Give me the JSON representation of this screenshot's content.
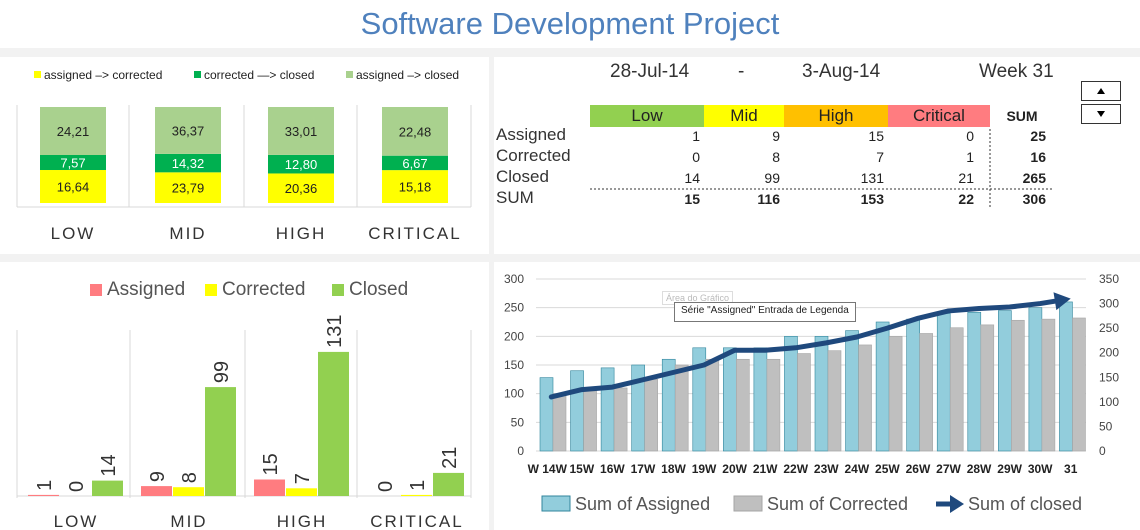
{
  "title": "Software Development Project",
  "period": {
    "start": "28-Jul-14",
    "sep": "-",
    "end": "3-Aug-14",
    "week": "Week 31"
  },
  "table": {
    "headers": [
      "Low",
      "Mid",
      "High",
      "Critical",
      "SUM"
    ],
    "header_colors": [
      "#92d050",
      "#ffff00",
      "#ffc000",
      "#ff7c80"
    ],
    "rows": [
      {
        "label": "Assigned",
        "values": [
          "1",
          "9",
          "15",
          "0",
          "25"
        ]
      },
      {
        "label": "Corrected",
        "values": [
          "0",
          "8",
          "7",
          "1",
          "16"
        ]
      },
      {
        "label": "Closed",
        "values": [
          "14",
          "99",
          "131",
          "21",
          "265"
        ]
      },
      {
        "label": "SUM",
        "values": [
          "15",
          "116",
          "153",
          "22",
          "306"
        ]
      }
    ]
  },
  "tooltip": "Série \"Assigned\" Entrada de Legenda",
  "ghost_label": "Área do Gráfico",
  "spinner": {
    "up": "▲",
    "down": "▼"
  },
  "chart_data": [
    {
      "type": "bar",
      "stacked": true,
      "categories": [
        "LOW",
        "MID",
        "HIGH",
        "CRITICAL"
      ],
      "series": [
        {
          "name": "assigned –> corrected",
          "color": "#ffff00",
          "values": [
            16.64,
            23.79,
            20.36,
            15.18
          ],
          "labels": [
            "16,64",
            "23,79",
            "20,36",
            "15,18"
          ]
        },
        {
          "name": "corrected —> closed",
          "color": "#00b050",
          "values": [
            7.57,
            14.32,
            12.8,
            6.67
          ],
          "labels": [
            "7,57",
            "14,32",
            "12,80",
            "6,67"
          ]
        },
        {
          "name": "assigned –> closed",
          "color": "#a9d18e",
          "values": [
            24.21,
            36.37,
            33.01,
            22.48
          ],
          "labels": [
            "24,21",
            "36,37",
            "33,01",
            "22,48"
          ]
        }
      ],
      "legend": "top"
    },
    {
      "type": "bar",
      "categories": [
        "LOW",
        "MID",
        "HIGH",
        "CRITICAL"
      ],
      "series": [
        {
          "name": "Assigned",
          "color": "#ff7c80",
          "values": [
            1,
            9,
            15,
            0
          ]
        },
        {
          "name": "Corrected",
          "color": "#ffff00",
          "values": [
            0,
            8,
            7,
            1
          ]
        },
        {
          "name": "Closed",
          "color": "#92d050",
          "values": [
            14,
            99,
            131,
            21
          ]
        }
      ],
      "ylim": [
        0,
        140
      ],
      "legend": "top"
    },
    {
      "type": "bar",
      "categories": [
        "W 14W",
        "15W",
        "16W",
        "17W",
        "18W",
        "19W",
        "20W",
        "21W",
        "22W",
        "23W",
        "24W",
        "25W",
        "26W",
        "27W",
        "28W",
        "29W",
        "30W",
        "31"
      ],
      "y_ticks": [
        0,
        50,
        100,
        150,
        200,
        250,
        300
      ],
      "ylim": [
        0,
        300
      ],
      "y2_ticks": [
        0,
        50,
        100,
        150,
        200,
        250,
        300,
        350
      ],
      "y2lim": [
        0,
        350
      ],
      "series": [
        {
          "name": "Sum of Assigned",
          "color": "#92cddc",
          "values": [
            128,
            140,
            145,
            150,
            160,
            180,
            180,
            180,
            200,
            200,
            210,
            225,
            230,
            240,
            242,
            245,
            250,
            260
          ]
        },
        {
          "name": "Sum of Corrected",
          "color": "#bfbfbf",
          "values": [
            100,
            105,
            110,
            125,
            150,
            160,
            160,
            160,
            170,
            175,
            185,
            200,
            205,
            215,
            220,
            228,
            230,
            232
          ]
        },
        {
          "name": "Sum of closed",
          "type": "line",
          "axis": "right",
          "color": "#1f497d",
          "values": [
            110,
            125,
            130,
            145,
            160,
            175,
            205,
            205,
            210,
            220,
            232,
            250,
            270,
            285,
            290,
            293,
            300,
            310
          ]
        }
      ],
      "legend": "bottom"
    }
  ]
}
